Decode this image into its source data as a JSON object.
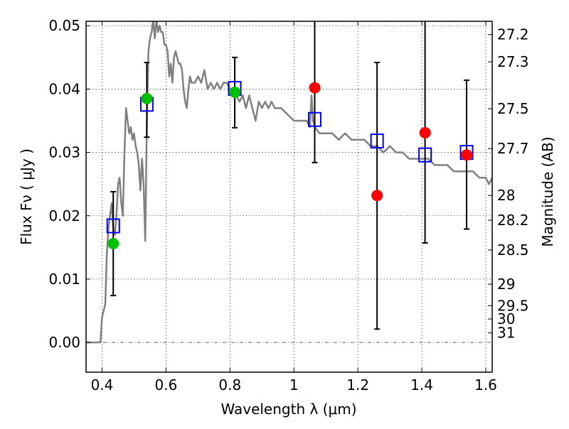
{
  "chart_data": {
    "type": "scatter",
    "title": "",
    "xlabel": "Wavelength  λ (μm)",
    "ylabel": "Flux  Fν  ( μJy )",
    "ylabel_right": "Magnitude (AB)",
    "xlim": [
      0.35,
      1.62
    ],
    "ylim": [
      -0.0047,
      0.0507
    ],
    "grid": true,
    "x_ticks": [
      0.4,
      0.6,
      0.8,
      1.0,
      1.2,
      1.4,
      1.6
    ],
    "x_tick_labels": [
      "0.4",
      "0.6",
      "0.8",
      "1",
      "1.2",
      "1.4",
      "1.6"
    ],
    "y_ticks": [
      0.0,
      0.01,
      0.02,
      0.03,
      0.04,
      0.05
    ],
    "y_tick_labels": [
      "0.00",
      "0.01",
      "0.02",
      "0.03",
      "0.04",
      "0.05"
    ],
    "right_ticks": [
      {
        "label": "27.2",
        "flux": 0.0486
      },
      {
        "label": "27.3",
        "flux": 0.0443
      },
      {
        "label": "27.5",
        "flux": 0.0369
      },
      {
        "label": "27.7",
        "flux": 0.0306
      },
      {
        "label": "28",
        "flux": 0.0232
      },
      {
        "label": "28.2",
        "flux": 0.0193
      },
      {
        "label": "28.5",
        "flux": 0.0146
      },
      {
        "label": "29",
        "flux": 0.0092
      },
      {
        "label": "29.5",
        "flux": 0.0058
      },
      {
        "label": "30",
        "flux": 0.0037
      },
      {
        "label": "31",
        "flux": 0.0015
      }
    ],
    "series": [
      {
        "name": "model-spectrum",
        "kind": "line",
        "color": "#808080",
        "x": [
          0.35,
          0.395,
          0.4,
          0.41,
          0.415,
          0.42,
          0.425,
          0.43,
          0.435,
          0.44,
          0.445,
          0.45,
          0.455,
          0.46,
          0.465,
          0.47,
          0.475,
          0.48,
          0.485,
          0.49,
          0.495,
          0.5,
          0.505,
          0.51,
          0.515,
          0.52,
          0.525,
          0.53,
          0.535,
          0.54,
          0.545,
          0.55,
          0.555,
          0.56,
          0.565,
          0.57,
          0.575,
          0.58,
          0.585,
          0.59,
          0.595,
          0.6,
          0.605,
          0.61,
          0.615,
          0.62,
          0.625,
          0.63,
          0.635,
          0.64,
          0.645,
          0.65,
          0.655,
          0.66,
          0.665,
          0.67,
          0.675,
          0.68,
          0.69,
          0.7,
          0.71,
          0.72,
          0.73,
          0.74,
          0.75,
          0.76,
          0.77,
          0.78,
          0.79,
          0.8,
          0.81,
          0.82,
          0.83,
          0.84,
          0.85,
          0.86,
          0.87,
          0.88,
          0.89,
          0.9,
          0.91,
          0.92,
          0.93,
          0.94,
          0.95,
          0.96,
          0.98,
          1.0,
          1.02,
          1.04,
          1.05,
          1.055,
          1.06,
          1.065,
          1.08,
          1.1,
          1.12,
          1.14,
          1.16,
          1.18,
          1.2,
          1.22,
          1.24,
          1.26,
          1.28,
          1.3,
          1.32,
          1.34,
          1.36,
          1.38,
          1.4,
          1.42,
          1.44,
          1.46,
          1.48,
          1.5,
          1.52,
          1.54,
          1.56,
          1.58,
          1.6,
          1.61,
          1.62
        ],
        "y": [
          0.0,
          0.0,
          0.004,
          0.006,
          0.014,
          0.018,
          0.02,
          0.022,
          0.018,
          0.017,
          0.02,
          0.025,
          0.026,
          0.022,
          0.02,
          0.03,
          0.037,
          0.035,
          0.033,
          0.034,
          0.032,
          0.033,
          0.031,
          0.03,
          0.028,
          0.024,
          0.029,
          0.025,
          0.016,
          0.034,
          0.046,
          0.048,
          0.049,
          0.051,
          0.048,
          0.051,
          0.049,
          0.05,
          0.049,
          0.049,
          0.047,
          0.047,
          0.046,
          0.042,
          0.044,
          0.041,
          0.045,
          0.046,
          0.045,
          0.044,
          0.044,
          0.043,
          0.04,
          0.038,
          0.037,
          0.04,
          0.042,
          0.041,
          0.041,
          0.042,
          0.041,
          0.043,
          0.04,
          0.041,
          0.04,
          0.041,
          0.04,
          0.041,
          0.041,
          0.04,
          0.04,
          0.039,
          0.038,
          0.039,
          0.037,
          0.039,
          0.037,
          0.035,
          0.038,
          0.037,
          0.038,
          0.037,
          0.038,
          0.037,
          0.037,
          0.037,
          0.036,
          0.035,
          0.035,
          0.035,
          0.034,
          0.039,
          0.035,
          0.034,
          0.033,
          0.033,
          0.033,
          0.032,
          0.033,
          0.032,
          0.032,
          0.032,
          0.031,
          0.031,
          0.03,
          0.031,
          0.03,
          0.03,
          0.029,
          0.029,
          0.029,
          0.029,
          0.028,
          0.028,
          0.028,
          0.027,
          0.027,
          0.027,
          0.027,
          0.026,
          0.026,
          0.025,
          0.026
        ]
      },
      {
        "name": "model-photometry",
        "kind": "open-square",
        "color": "#0000ff",
        "x": [
          0.435,
          0.54,
          0.815,
          1.065,
          1.26,
          1.41,
          1.54
        ],
        "y": [
          0.0184,
          0.0376,
          0.0401,
          0.0352,
          0.0318,
          0.0296,
          0.03
        ]
      },
      {
        "name": "observed-detections",
        "kind": "filled-circle",
        "color": "#00c000",
        "x": [
          0.435,
          0.54,
          0.815
        ],
        "y": [
          0.0156,
          0.0385,
          0.0395
        ]
      },
      {
        "name": "observed-nondetections",
        "kind": "filled-circle",
        "color": "#ff0000",
        "x": [
          1.065,
          1.26,
          1.41,
          1.54
        ],
        "y": [
          0.0402,
          0.0232,
          0.0331,
          0.0296
        ]
      },
      {
        "name": "error-bars",
        "kind": "errorbar",
        "color": "#000000",
        "x": [
          0.435,
          0.54,
          0.815,
          1.065,
          1.26,
          1.41,
          1.54
        ],
        "low": [
          0.0074,
          0.0324,
          0.0339,
          0.0284,
          0.0021,
          0.0157,
          0.0179
        ],
        "high": [
          0.0238,
          0.0442,
          0.045,
          0.052,
          0.0442,
          0.052,
          0.0414
        ]
      }
    ]
  }
}
